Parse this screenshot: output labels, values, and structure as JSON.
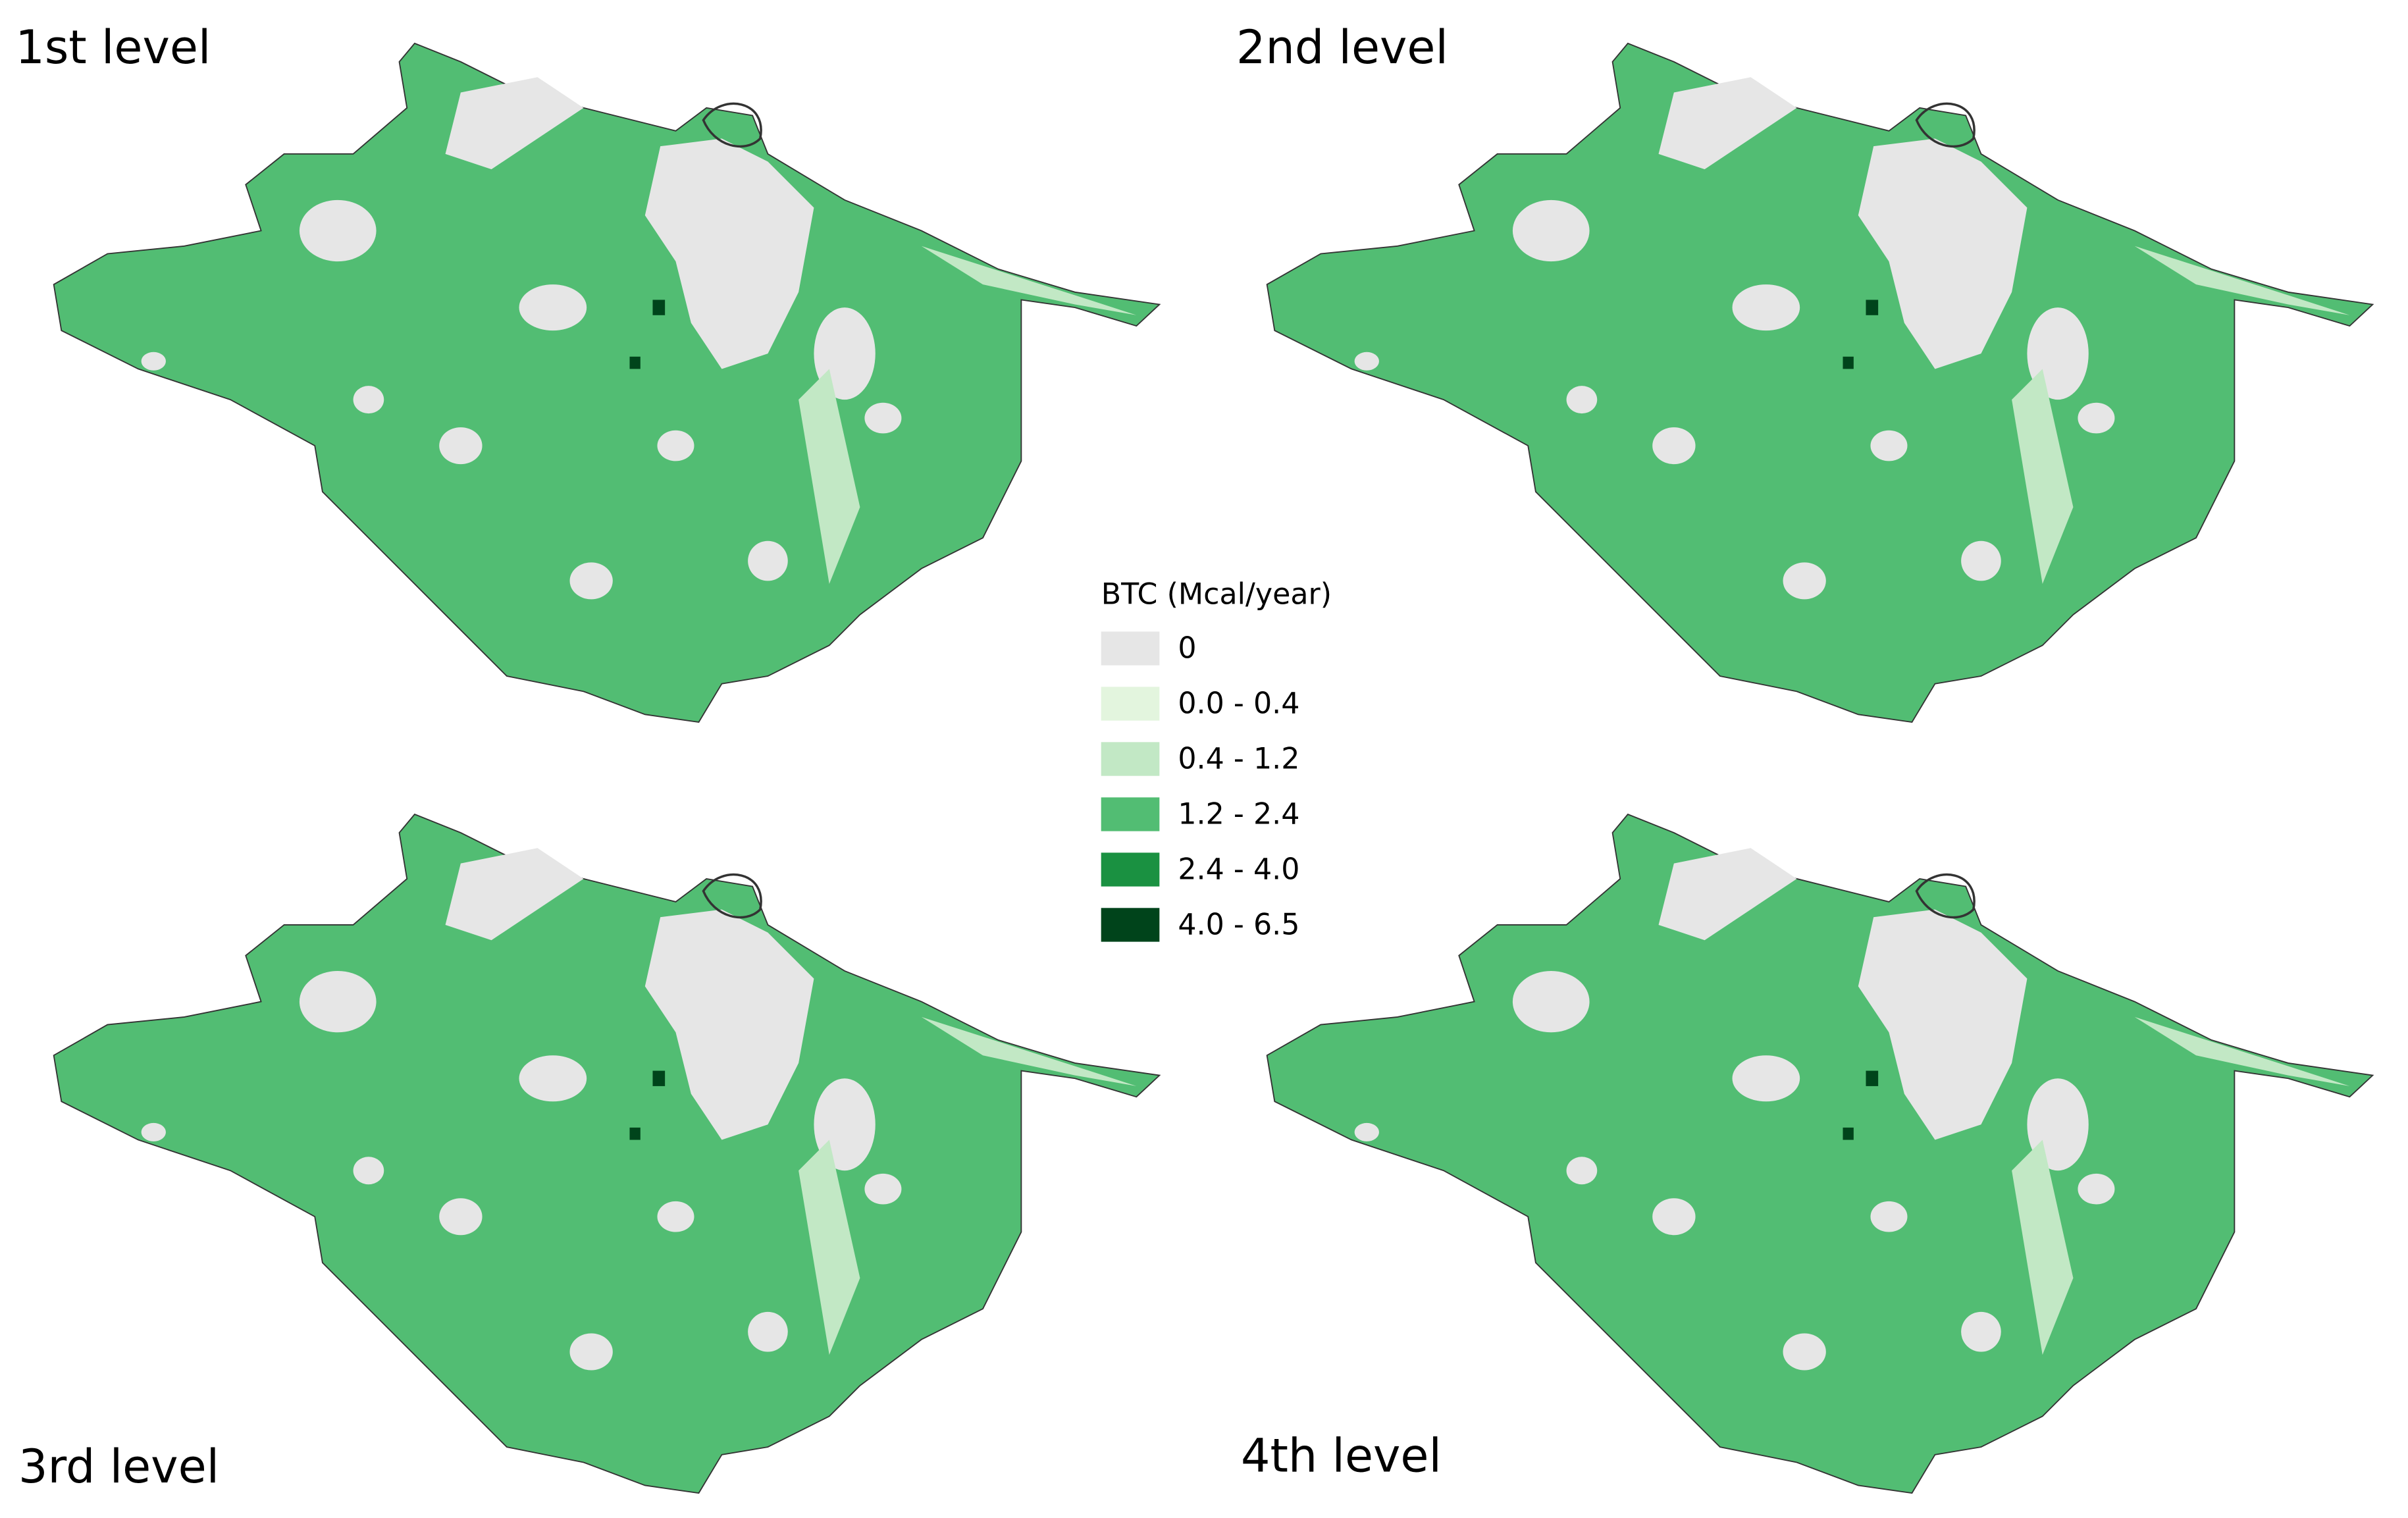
{
  "panels": [
    {
      "title": "1st level"
    },
    {
      "title": "2nd level"
    },
    {
      "title": "3rd level"
    },
    {
      "title": "4th level"
    }
  ],
  "legend": {
    "title": "BTC (Mcal/year)",
    "items": [
      {
        "label": "0",
        "color": "#e6e6e6"
      },
      {
        "label": "0.0 - 0.4",
        "color": "#e3f5de"
      },
      {
        "label": "0.4 - 1.2",
        "color": "#c2e8c5"
      },
      {
        "label": "1.2 - 2.4",
        "color": "#52bd73"
      },
      {
        "label": "2.4 - 4.0",
        "color": "#1a9141"
      },
      {
        "label": "4.0 - 6.5",
        "color": "#00441b"
      }
    ]
  }
}
